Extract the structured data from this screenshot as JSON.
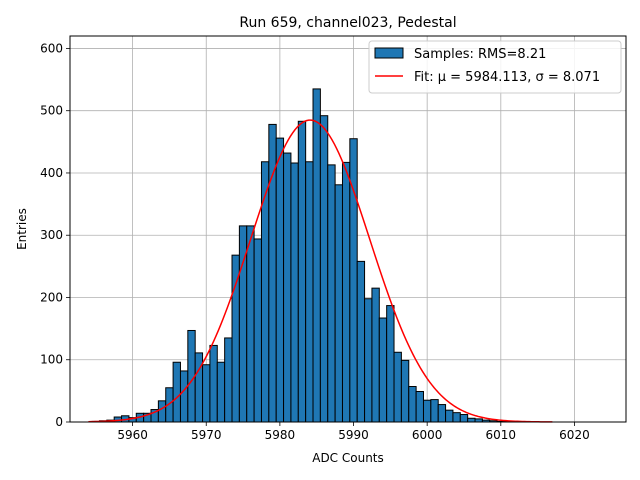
{
  "chart_data": {
    "type": "bar",
    "title": "Run 659, channel023, Pedestal",
    "xlabel": "ADC Counts",
    "ylabel": "Entries",
    "xlim": [
      5951.5,
      6027
    ],
    "ylim": [
      0,
      620
    ],
    "xticks": [
      5960,
      5970,
      5980,
      5990,
      6000,
      6010,
      6020
    ],
    "yticks": [
      0,
      100,
      200,
      300,
      400,
      500,
      600
    ],
    "grid": true,
    "legend_position": "top-right",
    "bin_width": 1,
    "series": [
      {
        "name": "Samples: RMS=8.21",
        "kind": "histogram",
        "color": "#1f77b4",
        "edgecolor": "#000000",
        "x": [
          5955,
          5956,
          5957,
          5958,
          5959,
          5960,
          5961,
          5962,
          5963,
          5964,
          5965,
          5966,
          5967,
          5968,
          5969,
          5970,
          5971,
          5972,
          5973,
          5974,
          5975,
          5976,
          5977,
          5978,
          5979,
          5980,
          5981,
          5982,
          5983,
          5984,
          5985,
          5986,
          5987,
          5988,
          5989,
          5990,
          5991,
          5992,
          5993,
          5994,
          5995,
          5996,
          5997,
          5998,
          5999,
          6000,
          6001,
          6002,
          6003,
          6004,
          6005,
          6006,
          6007,
          6008,
          6009,
          6010,
          6011,
          6012
        ],
        "values": [
          1,
          2,
          3,
          8,
          10,
          7,
          14,
          14,
          20,
          34,
          55,
          96,
          82,
          147,
          111,
          92,
          123,
          96,
          135,
          268,
          315,
          315,
          294,
          418,
          478,
          456,
          432,
          416,
          483,
          418,
          535,
          492,
          413,
          381,
          417,
          455,
          258,
          198,
          215,
          167,
          187,
          112,
          99,
          57,
          49,
          35,
          36,
          28,
          19,
          15,
          12,
          6,
          5,
          3,
          2,
          1,
          1,
          0
        ]
      },
      {
        "name": "Fit: μ = 5984.113, σ = 8.071",
        "kind": "gaussian",
        "color": "#ff0000",
        "mu": 5984.113,
        "sigma": 8.071,
        "amplitude": 485,
        "x_range": [
          5954,
          6017
        ]
      }
    ]
  }
}
